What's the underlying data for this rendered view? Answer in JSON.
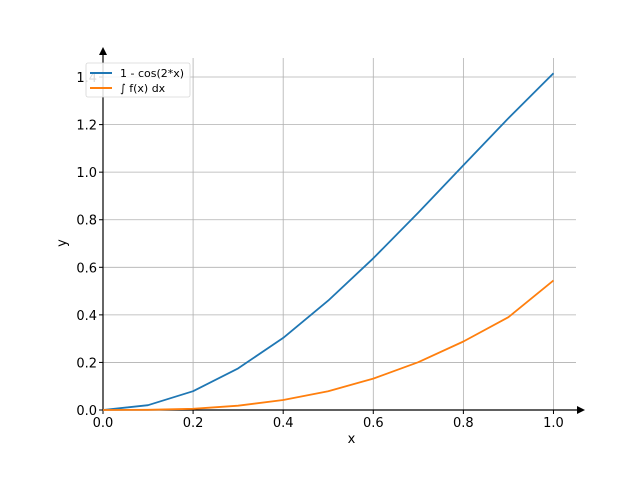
{
  "chart_data": {
    "type": "line",
    "title": "",
    "xlabel": "x",
    "ylabel": "y",
    "xlim": [
      0,
      1.05
    ],
    "ylim": [
      0,
      1.48
    ],
    "grid": true,
    "legend_position": "top-left",
    "x_ticks": [
      0.0,
      0.2,
      0.4,
      0.6,
      0.8,
      1.0
    ],
    "x_tick_labels": [
      "0.0",
      "0.2",
      "0.4",
      "0.6",
      "0.8",
      "1.0"
    ],
    "y_ticks": [
      0.0,
      0.2,
      0.4,
      0.6,
      0.8,
      1.0,
      1.2,
      1.4
    ],
    "y_tick_labels": [
      "0.0",
      "0.2",
      "0.4",
      "0.6",
      "0.8",
      "1.0",
      "1.2",
      "1.4"
    ],
    "series": [
      {
        "name": "1 - cos(2*x)",
        "color": "#1f77b4",
        "x": [
          0.0,
          0.1,
          0.2,
          0.3,
          0.4,
          0.5,
          0.6,
          0.7,
          0.8,
          0.9,
          1.0
        ],
        "y": [
          0.0,
          0.02,
          0.079,
          0.175,
          0.303,
          0.46,
          0.638,
          0.83,
          1.029,
          1.227,
          1.416
        ]
      },
      {
        "name": "∫ f(x) dx",
        "color": "#ff7f0e",
        "x": [
          0.0,
          0.1,
          0.2,
          0.3,
          0.4,
          0.5,
          0.6,
          0.7,
          0.8,
          0.9,
          1.0
        ],
        "y": [
          0.0,
          0.001,
          0.005,
          0.018,
          0.042,
          0.079,
          0.132,
          0.201,
          0.288,
          0.39,
          0.545
        ]
      }
    ]
  }
}
